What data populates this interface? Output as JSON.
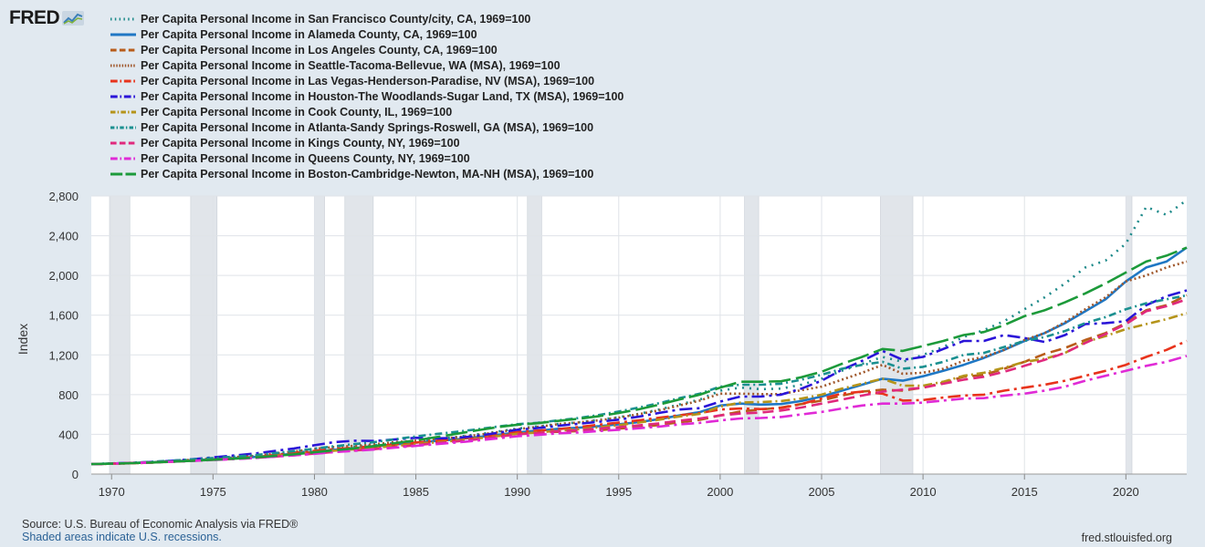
{
  "brand": {
    "logo_text": "FRED",
    "logo_icon": "fred-graph-icon"
  },
  "footer": {
    "source": "Source: U.S. Bureau of Economic Analysis via FRED®",
    "note": "Shaded areas indicate U.S. recessions.",
    "site": "fred.stlouisfed.org"
  },
  "chart_data": {
    "type": "line",
    "title": "",
    "xlabel": "",
    "ylabel": "Index",
    "xlim": [
      1969,
      2023
    ],
    "ylim": [
      0,
      2800
    ],
    "yticks": [
      0,
      400,
      800,
      1200,
      1600,
      2000,
      2400,
      2800
    ],
    "ytick_labels": [
      "0",
      "400",
      "800",
      "1,200",
      "1,600",
      "2,000",
      "2,400",
      "2,800"
    ],
    "xticks": [
      1970,
      1975,
      1980,
      1985,
      1990,
      1995,
      2000,
      2005,
      2010,
      2015,
      2020
    ],
    "xtick_labels": [
      "1970",
      "1975",
      "1980",
      "1985",
      "1990",
      "1995",
      "2000",
      "2005",
      "2010",
      "2015",
      "2020"
    ],
    "grid": true,
    "legend_position": "top",
    "recessions": [
      [
        1969.9,
        1970.9
      ],
      [
        1973.9,
        1975.2
      ],
      [
        1980.0,
        1980.5
      ],
      [
        1981.5,
        1982.9
      ],
      [
        1990.5,
        1991.2
      ],
      [
        2001.2,
        2001.9
      ],
      [
        2007.9,
        2009.5
      ],
      [
        2020.0,
        2020.3
      ]
    ],
    "x": [
      1969,
      1970,
      1971,
      1972,
      1973,
      1974,
      1975,
      1976,
      1977,
      1978,
      1979,
      1980,
      1981,
      1982,
      1983,
      1984,
      1985,
      1986,
      1987,
      1988,
      1989,
      1990,
      1991,
      1992,
      1993,
      1994,
      1995,
      1996,
      1997,
      1998,
      1999,
      2000,
      2001,
      2002,
      2003,
      2004,
      2005,
      2006,
      2007,
      2008,
      2009,
      2010,
      2011,
      2012,
      2013,
      2014,
      2015,
      2016,
      2017,
      2018,
      2019,
      2020,
      2021,
      2022,
      2023
    ],
    "series": [
      {
        "name": "Per Capita Personal Income in San Francisco County/city, CA, 1969=100",
        "color": "#1e8a8a",
        "dash": "2,6",
        "values": [
          100,
          106,
          112,
          121,
          131,
          143,
          154,
          167,
          180,
          197,
          214,
          234,
          257,
          274,
          291,
          314,
          333,
          352,
          374,
          399,
          427,
          458,
          479,
          504,
          520,
          545,
          572,
          607,
          650,
          701,
          750,
          840,
          870,
          855,
          860,
          900,
          960,
          1040,
          1110,
          1180,
          1130,
          1200,
          1280,
          1380,
          1450,
          1540,
          1660,
          1780,
          1920,
          2080,
          2150,
          2320,
          2690,
          2610,
          2760
        ]
      },
      {
        "name": "Per Capita Personal Income in Alameda County, CA, 1969=100",
        "color": "#1f77c4",
        "dash": "",
        "values": [
          100,
          106,
          112,
          119,
          128,
          139,
          149,
          160,
          172,
          188,
          205,
          224,
          245,
          262,
          279,
          299,
          317,
          333,
          350,
          371,
          394,
          420,
          437,
          455,
          466,
          482,
          501,
          523,
          554,
          590,
          624,
          690,
          710,
          700,
          705,
          735,
          780,
          840,
          900,
          960,
          940,
          985,
          1040,
          1100,
          1170,
          1250,
          1340,
          1420,
          1520,
          1640,
          1760,
          1940,
          2080,
          2140,
          2280
        ]
      },
      {
        "name": "Per Capita Personal Income in Los Angeles County, CA, 1969=100",
        "color": "#b85c1a",
        "dash": "12,6",
        "values": [
          100,
          105,
          110,
          117,
          125,
          135,
          146,
          157,
          169,
          185,
          202,
          221,
          241,
          256,
          270,
          291,
          308,
          324,
          341,
          362,
          384,
          406,
          418,
          425,
          432,
          442,
          458,
          475,
          494,
          521,
          546,
          590,
          630,
          650,
          670,
          705,
          740,
          790,
          830,
          850,
          840,
          870,
          920,
          980,
          1000,
          1060,
          1130,
          1210,
          1270,
          1350,
          1420,
          1520,
          1650,
          1700,
          1800
        ]
      },
      {
        "name": "Per Capita Personal Income in Seattle-Tacoma-Bellevue, WA (MSA), 1969=100",
        "color": "#a0582c",
        "dash": "2,3",
        "values": [
          100,
          104,
          108,
          117,
          130,
          144,
          158,
          171,
          184,
          205,
          228,
          253,
          273,
          285,
          301,
          322,
          337,
          353,
          370,
          393,
          421,
          452,
          475,
          502,
          520,
          541,
          568,
          603,
          643,
          690,
          740,
          810,
          810,
          805,
          805,
          845,
          880,
          950,
          1020,
          1100,
          1010,
          1020,
          1060,
          1140,
          1180,
          1250,
          1350,
          1420,
          1530,
          1660,
          1780,
          1940,
          2000,
          2080,
          2140
        ]
      },
      {
        "name": "Per Capita Personal Income in Las Vegas-Henderson-Paradise, NV (MSA), 1969=100",
        "color": "#e8331c",
        "dash": "14,5,3,5",
        "values": [
          100,
          104,
          109,
          116,
          125,
          134,
          144,
          156,
          170,
          191,
          213,
          234,
          252,
          266,
          281,
          300,
          318,
          335,
          352,
          375,
          398,
          423,
          437,
          452,
          473,
          497,
          518,
          542,
          567,
          592,
          614,
          650,
          660,
          655,
          665,
          705,
          760,
          810,
          830,
          810,
          740,
          745,
          770,
          790,
          800,
          840,
          870,
          900,
          940,
          990,
          1040,
          1100,
          1180,
          1250,
          1340
        ]
      },
      {
        "name": "Per Capita Personal Income in Houston-The Woodlands-Sugar Land, TX (MSA), 1969=100",
        "color": "#2a14d8",
        "dash": "14,5,3,5",
        "values": [
          100,
          106,
          113,
          122,
          134,
          150,
          168,
          186,
          206,
          231,
          258,
          290,
          322,
          336,
          333,
          350,
          365,
          360,
          364,
          384,
          414,
          446,
          464,
          486,
          506,
          526,
          548,
          578,
          616,
          650,
          664,
          730,
          780,
          780,
          800,
          860,
          940,
          1050,
          1140,
          1240,
          1150,
          1180,
          1260,
          1340,
          1340,
          1400,
          1370,
          1330,
          1400,
          1510,
          1520,
          1540,
          1700,
          1790,
          1850
        ]
      },
      {
        "name": "Per Capita Personal Income in Cook County, IL, 1969=100",
        "color": "#b5941a",
        "dash": "10,4,2,4",
        "values": [
          100,
          104,
          109,
          116,
          125,
          135,
          145,
          156,
          168,
          183,
          199,
          217,
          236,
          251,
          265,
          284,
          302,
          319,
          337,
          358,
          381,
          406,
          419,
          437,
          451,
          471,
          493,
          519,
          548,
          580,
          606,
          680,
          720,
          725,
          735,
          760,
          800,
          860,
          910,
          960,
          890,
          890,
          930,
          990,
          1020,
          1070,
          1130,
          1160,
          1220,
          1330,
          1390,
          1460,
          1510,
          1560,
          1620
        ]
      },
      {
        "name": "Per Capita Personal Income in Atlanta-Sandy Springs-Roswell, GA (MSA), 1969=100",
        "color": "#1a9090",
        "dash": "8,4,2,4",
        "values": [
          100,
          107,
          114,
          124,
          136,
          149,
          162,
          175,
          190,
          210,
          231,
          255,
          281,
          302,
          323,
          352,
          379,
          403,
          425,
          450,
          477,
          502,
          516,
          541,
          564,
          594,
          630,
          670,
          714,
          765,
          810,
          880,
          900,
          900,
          910,
          950,
          1000,
          1060,
          1100,
          1130,
          1060,
          1080,
          1130,
          1200,
          1220,
          1280,
          1340,
          1380,
          1440,
          1520,
          1580,
          1660,
          1720,
          1760,
          1800
        ]
      },
      {
        "name": "Per Capita Personal Income in Kings County, NY, 1969=100",
        "color": "#e0297d",
        "dash": "12,6",
        "values": [
          100,
          106,
          112,
          118,
          125,
          133,
          143,
          152,
          162,
          175,
          189,
          206,
          223,
          238,
          252,
          271,
          291,
          310,
          329,
          350,
          374,
          399,
          413,
          432,
          442,
          458,
          473,
          490,
          510,
          538,
          560,
          590,
          610,
          620,
          640,
          670,
          710,
          750,
          790,
          830,
          850,
          870,
          910,
          950,
          980,
          1030,
          1090,
          1150,
          1220,
          1320,
          1410,
          1510,
          1640,
          1690,
          1760
        ]
      },
      {
        "name": "Per Capita Personal Income in Queens County, NY, 1969=100",
        "color": "#e02ad6",
        "dash": "14,5,3,5",
        "values": [
          100,
          105,
          111,
          117,
          124,
          132,
          141,
          151,
          161,
          174,
          188,
          204,
          221,
          234,
          248,
          266,
          284,
          301,
          318,
          337,
          359,
          381,
          394,
          410,
          419,
          432,
          446,
          462,
          478,
          500,
          516,
          540,
          560,
          565,
          575,
          600,
          625,
          660,
          690,
          710,
          710,
          720,
          740,
          760,
          765,
          790,
          810,
          840,
          880,
          940,
          990,
          1040,
          1090,
          1130,
          1190
        ]
      },
      {
        "name": "Per Capita Personal Income in Boston-Cambridge-Newton, MA-NH (MSA), 1969=100",
        "color": "#1c9a3a",
        "dash": "24,6",
        "values": [
          100,
          105,
          110,
          117,
          125,
          134,
          144,
          154,
          166,
          182,
          199,
          219,
          240,
          260,
          283,
          312,
          340,
          372,
          405,
          440,
          472,
          497,
          512,
          535,
          556,
          582,
          615,
          653,
          700,
          752,
          800,
          870,
          930,
          930,
          935,
          975,
          1030,
          1110,
          1180,
          1260,
          1240,
          1290,
          1340,
          1400,
          1430,
          1500,
          1590,
          1650,
          1730,
          1820,
          1920,
          2030,
          2140,
          2200,
          2280
        ]
      }
    ]
  }
}
